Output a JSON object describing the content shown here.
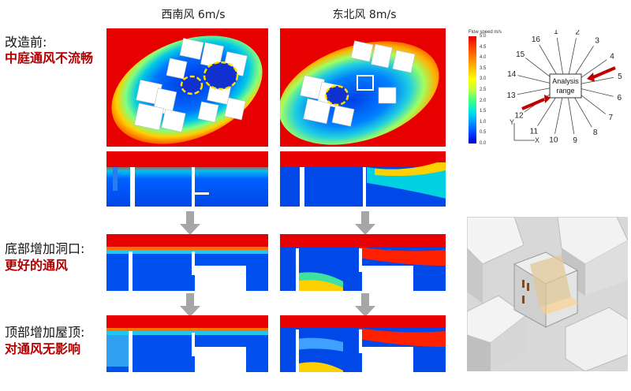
{
  "columns": {
    "sw": "西南风 6m/s",
    "ne": "东北风 8m/s"
  },
  "rows": [
    {
      "label_black": "改造前:",
      "label_red": "中庭通风不流畅"
    },
    {
      "label_black": "底部增加洞口:",
      "label_red": "更好的通风"
    },
    {
      "label_black": "顶部增加屋顶:",
      "label_red": "对通风无影响"
    }
  ],
  "legend": {
    "title": "Flow speed m/s",
    "ticks": [
      "5.0",
      "4.5",
      "4.0",
      "3.5",
      "3.0",
      "2.5",
      "2.0",
      "1.5",
      "1.0",
      "0.5",
      "0.0"
    ],
    "colors": [
      "#e60000",
      "#ff4000",
      "#ff8000",
      "#ffbf00",
      "#ffff00",
      "#bfff40",
      "#40ff80",
      "#00e6e6",
      "#0099ff",
      "#0044ff",
      "#0000cc"
    ]
  },
  "rose": {
    "center_label_1": "Analysis",
    "center_label_2": "range",
    "directions": [
      "1",
      "2",
      "3",
      "4",
      "5",
      "6",
      "7",
      "8",
      "9",
      "10",
      "11",
      "12",
      "13",
      "14",
      "15",
      "16"
    ],
    "axis_y": "Y",
    "axis_x": "X"
  }
}
